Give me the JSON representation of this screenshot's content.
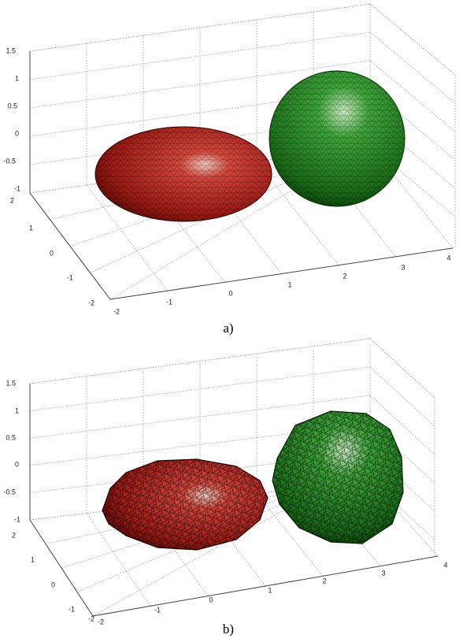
{
  "panels": [
    {
      "caption": "a)",
      "z_ticks": [
        "1.5",
        "1",
        "0.5",
        "0",
        "-0.5",
        "-1"
      ],
      "y_ticks": [
        "2",
        "1",
        "0",
        "-1",
        "-2"
      ],
      "x_ticks": [
        "-2",
        "-1",
        "0",
        "1",
        "2",
        "3",
        "4"
      ]
    },
    {
      "caption": "b)",
      "z_ticks": [
        "1.5",
        "1",
        "0.5",
        "0",
        "-0.5",
        "-1"
      ],
      "y_ticks": [
        "2",
        "1",
        "0",
        "-1",
        "-2"
      ],
      "x_ticks": [
        "-2",
        "-1",
        "0",
        "1",
        "2",
        "3",
        "4"
      ]
    }
  ]
}
